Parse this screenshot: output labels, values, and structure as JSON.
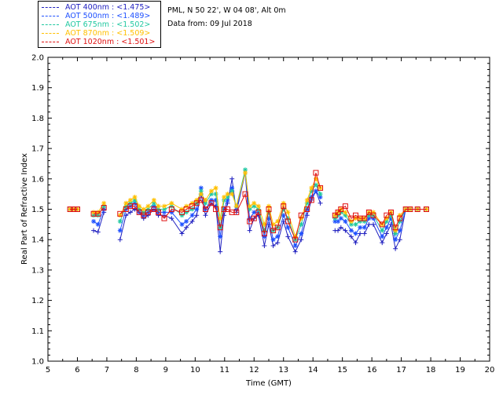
{
  "header": {
    "site": "PML, N 50 22', W 04 08', Alt 0m",
    "date": "Data from: 09 Jul 2018"
  },
  "legend": [
    {
      "label": "AOT  400nm : <1.475>",
      "color": "#2020c0"
    },
    {
      "label": "AOT  500nm : <1.489>",
      "color": "#1e50ff"
    },
    {
      "label": "AOT  675nm : <1.502>",
      "color": "#20c8a0"
    },
    {
      "label": "AOT  870nm : <1.509>",
      "color": "#ffc000"
    },
    {
      "label": "AOT 1020nm : <1.501>",
      "color": "#e01010"
    }
  ],
  "chart_data": {
    "type": "line",
    "xlabel": "Time (GMT)",
    "ylabel": "Real Part of Refractive Index",
    "xlim": [
      5,
      20
    ],
    "ylim": [
      1.0,
      2.0
    ],
    "xticks": [
      "5",
      "6",
      "7",
      "8",
      "9",
      "10",
      "11",
      "12",
      "13",
      "14",
      "15",
      "16",
      "17",
      "18",
      "19",
      "20"
    ],
    "yticks": [
      "1.0",
      "1.1",
      "1.2",
      "1.3",
      "1.4",
      "1.5",
      "1.6",
      "1.7",
      "1.8",
      "1.9",
      "2.0"
    ],
    "x": [
      5.75,
      5.88,
      6.0,
      6.55,
      6.7,
      6.9,
      7.45,
      7.65,
      7.8,
      7.95,
      8.1,
      8.25,
      8.4,
      8.6,
      8.75,
      8.95,
      9.2,
      9.55,
      9.7,
      9.9,
      10.05,
      10.2,
      10.35,
      10.55,
      10.7,
      10.85,
      10.98,
      11.1,
      11.25,
      11.4,
      11.7,
      11.85,
      12.0,
      12.15,
      12.35,
      12.5,
      12.65,
      12.8,
      13.0,
      13.15,
      13.4,
      13.6,
      13.8,
      13.95,
      14.1,
      14.25,
      14.75,
      14.85,
      14.95,
      15.1,
      15.3,
      15.45,
      15.6,
      15.75,
      15.9,
      16.05,
      16.35,
      16.5,
      16.65,
      16.8,
      16.95,
      17.15,
      17.3,
      17.55,
      17.85
    ],
    "series": [
      {
        "name": "AOT  400nm",
        "color": "#2020c0",
        "values": [
          1.5,
          1.5,
          1.5,
          1.43,
          1.425,
          1.49,
          1.4,
          1.48,
          1.49,
          1.5,
          1.49,
          1.47,
          1.48,
          1.5,
          1.48,
          1.48,
          1.47,
          1.42,
          1.44,
          1.46,
          1.48,
          1.55,
          1.48,
          1.52,
          1.51,
          1.36,
          1.48,
          1.52,
          1.6,
          1.49,
          1.62,
          1.43,
          1.47,
          1.48,
          1.38,
          1.45,
          1.38,
          1.39,
          1.46,
          1.41,
          1.36,
          1.4,
          1.48,
          1.53,
          1.56,
          1.52,
          1.43,
          1.43,
          1.44,
          1.43,
          1.41,
          1.39,
          1.42,
          1.42,
          1.45,
          1.45,
          1.39,
          1.42,
          1.45,
          1.37,
          1.4,
          1.5,
          1.5,
          1.5,
          1.5
        ]
      },
      {
        "name": "AOT  500nm",
        "color": "#1e50ff",
        "values": [
          1.5,
          1.5,
          1.5,
          1.46,
          1.45,
          1.5,
          1.43,
          1.5,
          1.51,
          1.52,
          1.49,
          1.48,
          1.49,
          1.51,
          1.49,
          1.49,
          1.49,
          1.45,
          1.46,
          1.48,
          1.5,
          1.57,
          1.5,
          1.53,
          1.53,
          1.41,
          1.5,
          1.53,
          1.57,
          1.5,
          1.62,
          1.47,
          1.49,
          1.49,
          1.41,
          1.47,
          1.4,
          1.41,
          1.48,
          1.44,
          1.38,
          1.42,
          1.5,
          1.54,
          1.56,
          1.54,
          1.46,
          1.46,
          1.47,
          1.46,
          1.43,
          1.42,
          1.44,
          1.44,
          1.47,
          1.47,
          1.41,
          1.44,
          1.47,
          1.4,
          1.43,
          1.5,
          1.5,
          1.5,
          1.5
        ]
      },
      {
        "name": "AOT  675nm",
        "color": "#20c8a0",
        "values": [
          1.5,
          1.5,
          1.5,
          1.48,
          1.48,
          1.51,
          1.46,
          1.51,
          1.52,
          1.53,
          1.5,
          1.49,
          1.5,
          1.52,
          1.5,
          1.5,
          1.51,
          1.48,
          1.49,
          1.5,
          1.52,
          1.56,
          1.52,
          1.55,
          1.55,
          1.44,
          1.53,
          1.54,
          1.56,
          1.51,
          1.63,
          1.5,
          1.51,
          1.5,
          1.43,
          1.49,
          1.43,
          1.44,
          1.5,
          1.47,
          1.4,
          1.45,
          1.52,
          1.56,
          1.58,
          1.55,
          1.47,
          1.48,
          1.49,
          1.48,
          1.45,
          1.45,
          1.46,
          1.46,
          1.48,
          1.48,
          1.43,
          1.46,
          1.48,
          1.42,
          1.46,
          1.5,
          1.5,
          1.5,
          1.5
        ]
      },
      {
        "name": "AOT  870nm",
        "color": "#ffc000",
        "values": [
          1.5,
          1.5,
          1.5,
          1.49,
          1.49,
          1.52,
          1.48,
          1.52,
          1.53,
          1.54,
          1.51,
          1.5,
          1.51,
          1.53,
          1.51,
          1.51,
          1.52,
          1.5,
          1.51,
          1.52,
          1.53,
          1.55,
          1.53,
          1.56,
          1.57,
          1.47,
          1.54,
          1.55,
          1.55,
          1.51,
          1.62,
          1.51,
          1.52,
          1.51,
          1.45,
          1.51,
          1.45,
          1.46,
          1.52,
          1.49,
          1.41,
          1.47,
          1.53,
          1.57,
          1.6,
          1.57,
          1.48,
          1.49,
          1.5,
          1.49,
          1.46,
          1.47,
          1.47,
          1.47,
          1.49,
          1.49,
          1.45,
          1.47,
          1.49,
          1.43,
          1.48,
          1.5,
          1.5,
          1.5,
          1.5
        ]
      },
      {
        "name": "AOT 1020nm",
        "color": "#e01010",
        "values": [
          1.5,
          1.5,
          1.5,
          1.485,
          1.485,
          1.505,
          1.485,
          1.5,
          1.51,
          1.51,
          1.49,
          1.48,
          1.49,
          1.5,
          1.49,
          1.47,
          1.5,
          1.49,
          1.5,
          1.51,
          1.52,
          1.53,
          1.5,
          1.52,
          1.5,
          1.44,
          1.5,
          1.5,
          1.49,
          1.49,
          1.55,
          1.46,
          1.47,
          1.49,
          1.42,
          1.5,
          1.43,
          1.44,
          1.51,
          1.46,
          1.4,
          1.48,
          1.5,
          1.53,
          1.62,
          1.57,
          1.48,
          1.49,
          1.5,
          1.51,
          1.47,
          1.48,
          1.47,
          1.47,
          1.49,
          1.48,
          1.45,
          1.48,
          1.49,
          1.44,
          1.47,
          1.5,
          1.5,
          1.5,
          1.5
        ]
      }
    ]
  }
}
